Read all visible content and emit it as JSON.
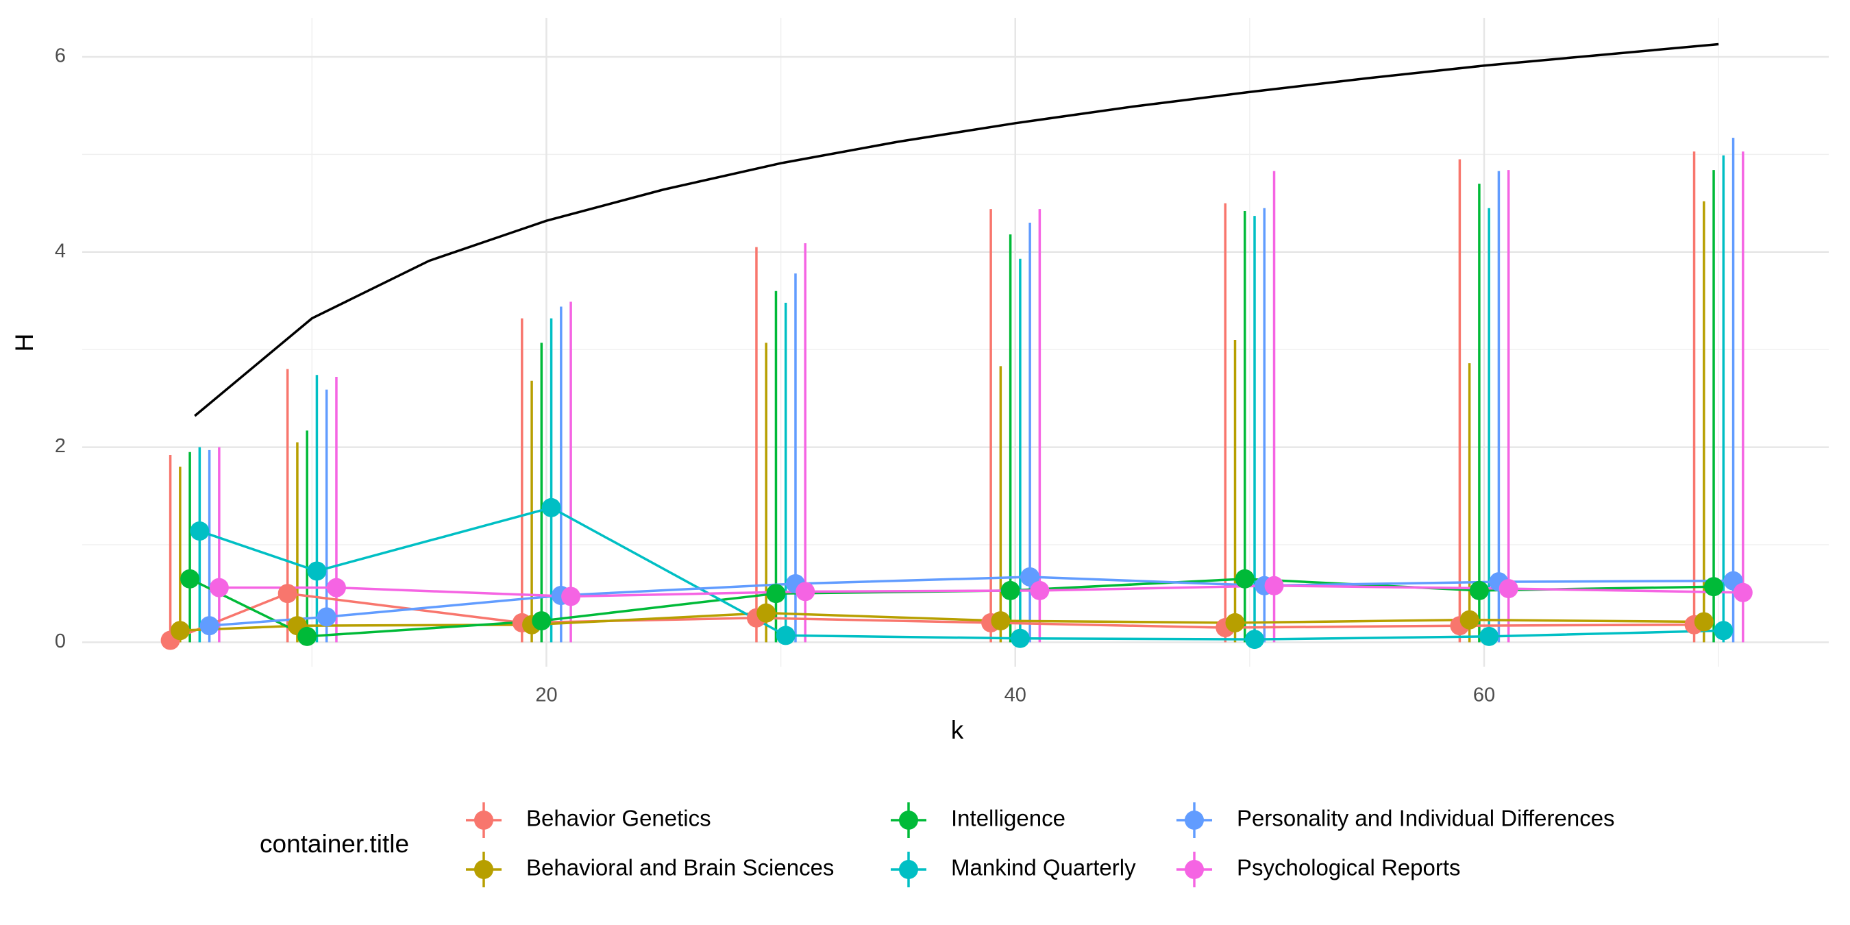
{
  "chart_data": {
    "type": "errorbar-line",
    "x_label": "k",
    "y_label": "H",
    "x": [
      5,
      10,
      20,
      30,
      40,
      50,
      60,
      70
    ],
    "dodge_width": 2.5,
    "xlim": [
      0.2,
      74.7
    ],
    "ylim": [
      -0.25,
      6.4
    ],
    "xticks": [
      20,
      40,
      60
    ],
    "yticks": [
      0,
      2,
      4,
      6
    ],
    "x_minor_grid": [
      10,
      30,
      50,
      70
    ],
    "y_minor_grid": [
      1,
      3,
      5
    ],
    "grid": true,
    "legend_title": "container.title",
    "legend_position": "bottom",
    "series": [
      {
        "name": "Behavior Genetics",
        "color": "#F8766D",
        "values": [
          0.02,
          0.5,
          0.2,
          0.25,
          0.2,
          0.15,
          0.17,
          0.18
        ],
        "lower": [
          0,
          0,
          0,
          0,
          0,
          0,
          0,
          0
        ],
        "upper": [
          1.92,
          2.8,
          3.32,
          4.05,
          4.44,
          4.5,
          4.95,
          5.03
        ]
      },
      {
        "name": "Behavioral and Brain Sciences",
        "color": "#B79F00",
        "values": [
          0.12,
          0.17,
          0.18,
          0.3,
          0.22,
          0.2,
          0.23,
          0.21
        ],
        "lower": [
          0,
          0,
          0,
          0,
          0,
          0,
          0,
          0
        ],
        "upper": [
          1.8,
          2.05,
          2.68,
          3.07,
          2.83,
          3.1,
          2.86,
          4.52
        ]
      },
      {
        "name": "Intelligence",
        "color": "#00BA38",
        "values": [
          0.65,
          0.06,
          0.22,
          0.5,
          0.53,
          0.65,
          0.53,
          0.57
        ],
        "lower": [
          0,
          0,
          0,
          0,
          0,
          0,
          0,
          0
        ],
        "upper": [
          1.95,
          2.17,
          3.07,
          3.6,
          4.18,
          4.42,
          4.7,
          4.84
        ]
      },
      {
        "name": "Mankind Quarterly",
        "color": "#00BFC4",
        "values": [
          1.14,
          0.73,
          1.38,
          0.07,
          0.04,
          0.03,
          0.06,
          0.12
        ],
        "lower": [
          0,
          0,
          0,
          0,
          0,
          0,
          0,
          0
        ],
        "upper": [
          2.0,
          2.74,
          3.32,
          3.48,
          3.93,
          4.37,
          4.45,
          4.99
        ]
      },
      {
        "name": "Personality and Individual Differences",
        "color": "#619CFF",
        "values": [
          0.17,
          0.26,
          0.48,
          0.6,
          0.67,
          0.58,
          0.62,
          0.63
        ],
        "lower": [
          0,
          0,
          0,
          0,
          0,
          0,
          0,
          0
        ],
        "upper": [
          1.97,
          2.59,
          3.44,
          3.78,
          4.3,
          4.45,
          4.83,
          5.17
        ]
      },
      {
        "name": "Psychological Reports",
        "color": "#F564E3",
        "values": [
          0.56,
          0.56,
          0.47,
          0.52,
          0.53,
          0.58,
          0.55,
          0.51
        ],
        "lower": [
          0,
          0,
          0,
          0,
          0,
          0,
          0,
          0
        ],
        "upper": [
          2.0,
          2.72,
          3.49,
          4.09,
          4.44,
          4.83,
          4.84,
          5.03
        ]
      }
    ],
    "reference_curve": {
      "color": "#000000",
      "x": [
        5,
        10,
        15,
        20,
        25,
        30,
        35,
        40,
        45,
        50,
        55,
        60,
        65,
        70
      ],
      "values": [
        2.32,
        3.32,
        3.91,
        4.32,
        4.64,
        4.91,
        5.13,
        5.32,
        5.49,
        5.64,
        5.78,
        5.91,
        6.02,
        6.13
      ]
    }
  }
}
